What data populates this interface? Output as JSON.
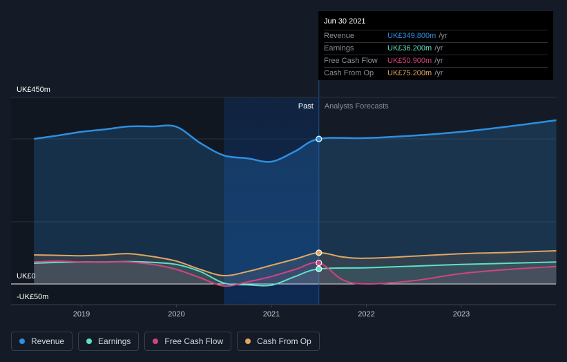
{
  "colors": {
    "revenue": "#2d8fe0",
    "earnings": "#5fe0c8",
    "free_cash_flow": "#d2447e",
    "cash_from_op": "#e0a664",
    "past_highlight": "#0d2a55",
    "background": "#151b26"
  },
  "tooltip": {
    "date": "Jun 30 2021",
    "rows": [
      {
        "label": "Revenue",
        "value": "UK£349.800m",
        "unit": "/yr",
        "color": "#2d8fe0"
      },
      {
        "label": "Earnings",
        "value": "UK£36.200m",
        "unit": "/yr",
        "color": "#5fe0c8"
      },
      {
        "label": "Free Cash Flow",
        "value": "UK£50.900m",
        "unit": "/yr",
        "color": "#d2447e"
      },
      {
        "label": "Cash From Op",
        "value": "UK£75.200m",
        "unit": "/yr",
        "color": "#e0a664"
      }
    ]
  },
  "legend": [
    {
      "label": "Revenue",
      "color": "#2d8fe0"
    },
    {
      "label": "Earnings",
      "color": "#5fe0c8"
    },
    {
      "label": "Free Cash Flow",
      "color": "#d2447e"
    },
    {
      "label": "Cash From Op",
      "color": "#e0a664"
    }
  ],
  "chart_data": {
    "type": "line",
    "title": "",
    "xlabel": "",
    "ylabel": "",
    "ylim": [
      -50,
      450
    ],
    "xlim": [
      2018.5,
      2024.0
    ],
    "y_tick_labels": [
      "UK£450m",
      "UK£0",
      "-UK£50m"
    ],
    "y_tick_values": [
      450,
      0,
      -50
    ],
    "x_ticks": [
      2019,
      2020,
      2021,
      2022,
      2023
    ],
    "x_tick_labels": [
      "2019",
      "2020",
      "2021",
      "2022",
      "2023"
    ],
    "past_label": "Past",
    "forecast_label": "Analysts Forecasts",
    "past_region": [
      2020.5,
      2021.5
    ],
    "divider_x": 2021.5,
    "series": [
      {
        "name": "Revenue",
        "key": "revenue",
        "x": [
          2018.5,
          2018.75,
          2019.0,
          2019.25,
          2019.5,
          2019.75,
          2020.0,
          2020.25,
          2020.5,
          2020.75,
          2021.0,
          2021.25,
          2021.5,
          2022.0,
          2022.5,
          2023.0,
          2023.5,
          2024.0
        ],
        "values": [
          350,
          358,
          367,
          373,
          380,
          380,
          379,
          340,
          310,
          303,
          295,
          320,
          349.8,
          352,
          358,
          367,
          380,
          395
        ]
      },
      {
        "name": "Earnings",
        "key": "earnings",
        "x": [
          2018.5,
          2018.75,
          2019.0,
          2019.25,
          2019.5,
          2019.75,
          2020.0,
          2020.25,
          2020.5,
          2020.75,
          2021.0,
          2021.25,
          2021.5,
          2022.0,
          2022.5,
          2023.0,
          2023.5,
          2024.0
        ],
        "values": [
          50,
          52,
          53,
          53,
          54,
          52,
          47,
          30,
          2,
          -2,
          -3,
          18,
          36.2,
          39,
          43,
          47,
          50,
          53
        ]
      },
      {
        "name": "Free Cash Flow",
        "key": "free_cash_flow",
        "x": [
          2018.5,
          2018.75,
          2019.0,
          2019.25,
          2019.5,
          2019.75,
          2020.0,
          2020.25,
          2020.5,
          2020.75,
          2021.0,
          2021.25,
          2021.5,
          2021.75,
          2022.0,
          2022.5,
          2023.0,
          2023.5,
          2024.0
        ],
        "values": [
          53,
          55,
          53,
          53,
          53,
          47,
          35,
          15,
          -5,
          5,
          18,
          35,
          50.9,
          10,
          0,
          8,
          25,
          35,
          42
        ]
      },
      {
        "name": "Cash From Op",
        "key": "cash_from_op",
        "x": [
          2018.5,
          2018.75,
          2019.0,
          2019.25,
          2019.5,
          2019.75,
          2020.0,
          2020.25,
          2020.5,
          2020.75,
          2021.0,
          2021.25,
          2021.5,
          2021.75,
          2022.0,
          2022.5,
          2023.0,
          2023.5,
          2024.0
        ],
        "values": [
          70,
          69,
          68,
          70,
          73,
          66,
          55,
          35,
          20,
          30,
          45,
          60,
          75.2,
          65,
          62,
          67,
          73,
          76,
          80
        ]
      }
    ]
  }
}
